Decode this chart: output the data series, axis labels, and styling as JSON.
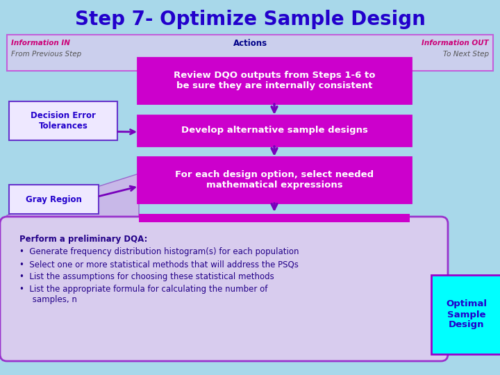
{
  "title": "Step 7- Optimize Sample Design",
  "title_color": "#2200CC",
  "background_color": "#A8D8EA",
  "header_box_facecolor": "#E8C8F0",
  "header_border_color": "#CC00CC",
  "info_in_label": "Information IN",
  "from_prev_label": "From Previous Step",
  "actions_label": "Actions",
  "info_out_label": "Information OUT",
  "to_next_label": "To Next Step",
  "action1_text": "Review DQO outputs from Steps 1-6 to\nbe sure they are internally consistent",
  "action2_text": "Develop alternative sample designs",
  "action3_text": "For each design option, select needed\nmathematical expressions",
  "action_box_color": "#CC00CC",
  "action_text_color": "#FFFFFF",
  "left_box1_text": "Decision Error\nTolerances",
  "left_box2_text": "Gray Region",
  "left_box_bg": "#EEE8FF",
  "left_box_border": "#6633CC",
  "left_box_text_color": "#2200CC",
  "bottom_box_color": "#D8CCEE",
  "bottom_box_border": "#9933CC",
  "bottom_text_line0": "Perform a preliminary DQA:",
  "bottom_bullets": [
    "Generate frequency distribution histogram(s) for each population",
    "Select one or more statistical methods that will address the PSQs",
    "List the assumptions for choosing these statistical methods",
    "List the appropriate formula for calculating the number of\n     samples, n"
  ],
  "bottom_text_color": "#220088",
  "cyan_box_text": "Optimal\nSample\nDesign",
  "cyan_box_color": "#00FFFF",
  "cyan_box_border": "#9900CC",
  "cyan_text_color": "#2200CC",
  "arrow_color": "#7700BB",
  "diagonal_fill": "#C8B8E8",
  "diagonal_border": "#9966CC",
  "header_bar_color": "#CC00CC"
}
